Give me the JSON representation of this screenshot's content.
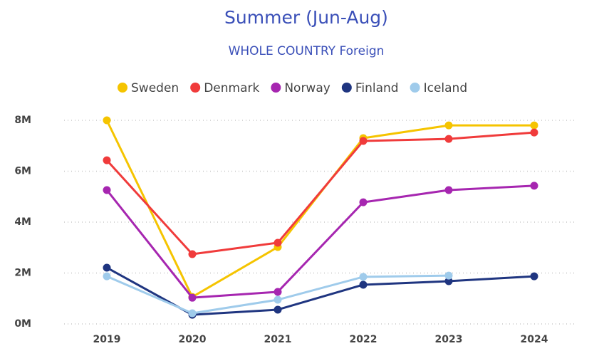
{
  "chart_data": {
    "type": "line",
    "title": "Summer (Jun-Aug)",
    "subtitle": "WHOLE COUNTRY Foreign",
    "categories": [
      "2019",
      "2020",
      "2021",
      "2022",
      "2023",
      "2024"
    ],
    "series": [
      {
        "name": "Sweden",
        "color": "#f5c400",
        "values": [
          8000000,
          1060000,
          3020000,
          7300000,
          7800000,
          7800000
        ]
      },
      {
        "name": "Denmark",
        "color": "#f03b3b",
        "values": [
          6430000,
          2740000,
          3190000,
          7190000,
          7270000,
          7520000
        ]
      },
      {
        "name": "Norway",
        "color": "#a626b0",
        "values": [
          5260000,
          1030000,
          1260000,
          4780000,
          5260000,
          5430000
        ]
      },
      {
        "name": "Finland",
        "color": "#1f3580",
        "values": [
          2210000,
          360000,
          560000,
          1540000,
          1680000,
          1870000
        ]
      },
      {
        "name": "Iceland",
        "color": "#9fcbeb",
        "values": [
          1870000,
          420000,
          950000,
          1850000,
          1900000,
          null
        ]
      }
    ],
    "ylim": [
      0,
      8000000
    ],
    "yticks": [
      {
        "value": 0,
        "label": "0M"
      },
      {
        "value": 2000000,
        "label": "2M"
      },
      {
        "value": 4000000,
        "label": "4M"
      },
      {
        "value": 6000000,
        "label": "6M"
      },
      {
        "value": 8000000,
        "label": "8M"
      }
    ],
    "grid": true,
    "legend": "top"
  }
}
